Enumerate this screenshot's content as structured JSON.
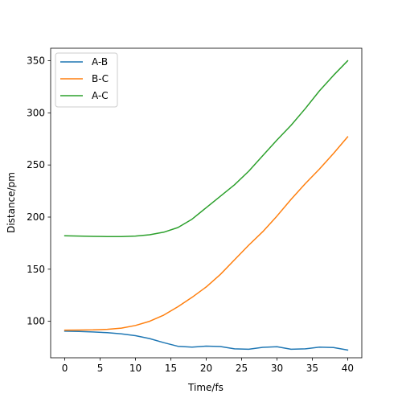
{
  "chart_data": {
    "type": "line",
    "title": "",
    "xlabel": "Time/fs",
    "ylabel": "Distance/pm",
    "xlim": [
      -2,
      42
    ],
    "ylim": [
      65,
      362
    ],
    "xticks": [
      0,
      5,
      10,
      15,
      20,
      25,
      30,
      35,
      40
    ],
    "yticks": [
      100,
      150,
      200,
      250,
      300,
      350
    ],
    "grid": false,
    "legend_position": "top-left",
    "x": [
      0,
      2,
      4,
      6,
      8,
      10,
      12,
      14,
      16,
      18,
      20,
      22,
      24,
      26,
      28,
      30,
      32,
      34,
      36,
      38,
      40
    ],
    "series": [
      {
        "name": "A-B",
        "color": "#1f77b4",
        "values": [
          90.5,
          90.3,
          89.8,
          89.1,
          88.0,
          86.2,
          83.4,
          79.5,
          76.0,
          75.2,
          76.2,
          75.8,
          73.6,
          73.2,
          75.0,
          75.6,
          73.2,
          73.6,
          75.2,
          74.8,
          72.4
        ]
      },
      {
        "name": "B-C",
        "color": "#ff7f0e",
        "values": [
          91.5,
          91.6,
          91.8,
          92.3,
          93.5,
          96.0,
          100.0,
          106.0,
          114.0,
          123.0,
          133.0,
          145.0,
          159.0,
          173.0,
          186.0,
          201.0,
          217.0,
          232.0,
          246.0,
          261.0,
          277.0
        ]
      },
      {
        "name": "A-C",
        "color": "#2ca02c",
        "values": [
          182.0,
          181.8,
          181.5,
          181.3,
          181.3,
          181.8,
          183.0,
          185.5,
          190.0,
          198.0,
          209.0,
          220.0,
          231.0,
          244.0,
          259.0,
          274.0,
          288.0,
          304.0,
          321.0,
          336.0,
          350.0
        ]
      }
    ]
  }
}
